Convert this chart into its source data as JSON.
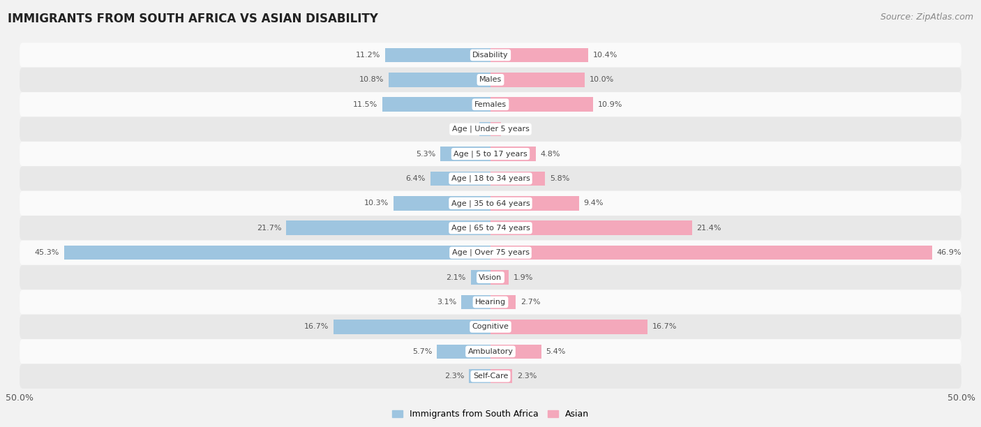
{
  "title": "IMMIGRANTS FROM SOUTH AFRICA VS ASIAN DISABILITY",
  "source": "Source: ZipAtlas.com",
  "categories": [
    "Disability",
    "Males",
    "Females",
    "Age | Under 5 years",
    "Age | 5 to 17 years",
    "Age | 18 to 34 years",
    "Age | 35 to 64 years",
    "Age | 65 to 74 years",
    "Age | Over 75 years",
    "Vision",
    "Hearing",
    "Cognitive",
    "Ambulatory",
    "Self-Care"
  ],
  "left_values": [
    11.2,
    10.8,
    11.5,
    1.2,
    5.3,
    6.4,
    10.3,
    21.7,
    45.3,
    2.1,
    3.1,
    16.7,
    5.7,
    2.3
  ],
  "right_values": [
    10.4,
    10.0,
    10.9,
    1.1,
    4.8,
    5.8,
    9.4,
    21.4,
    46.9,
    1.9,
    2.7,
    16.7,
    5.4,
    2.3
  ],
  "left_color": "#9ec5e0",
  "right_color": "#f4a8bb",
  "axis_max": 50.0,
  "left_label": "Immigrants from South Africa",
  "right_label": "Asian",
  "title_fontsize": 12,
  "source_fontsize": 9,
  "bar_height": 0.58,
  "background_color": "#f2f2f2",
  "row_colors": [
    "#fafafa",
    "#e8e8e8"
  ]
}
